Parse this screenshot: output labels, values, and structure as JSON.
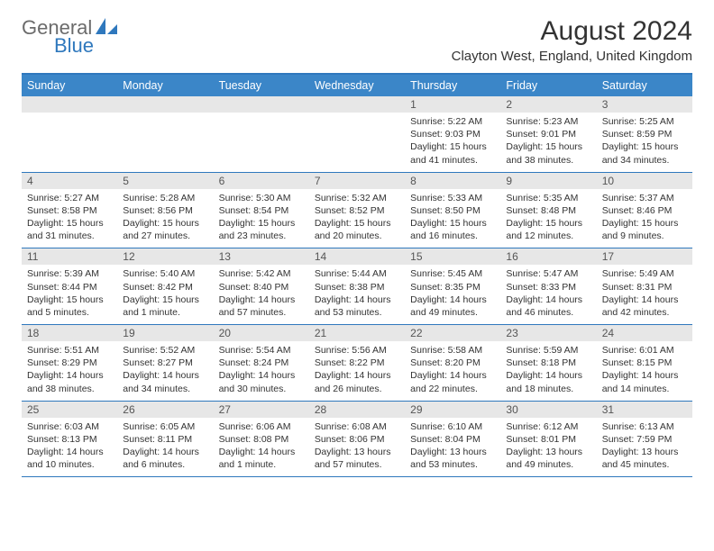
{
  "logo": {
    "text_general": "General",
    "text_blue": "Blue",
    "general_color": "#6b6b6b",
    "blue_color": "#2f78bd"
  },
  "title": {
    "month": "August 2024",
    "location": "Clayton West, England, United Kingdom"
  },
  "colors": {
    "header_bg": "#3b86c8",
    "header_text": "#ffffff",
    "border": "#2f78bd",
    "daynum_bg": "#e7e7e7",
    "body_text": "#333333"
  },
  "day_headers": [
    "Sunday",
    "Monday",
    "Tuesday",
    "Wednesday",
    "Thursday",
    "Friday",
    "Saturday"
  ],
  "weeks": [
    [
      {
        "day": "",
        "sunrise": "",
        "sunset": "",
        "daylight": ""
      },
      {
        "day": "",
        "sunrise": "",
        "sunset": "",
        "daylight": ""
      },
      {
        "day": "",
        "sunrise": "",
        "sunset": "",
        "daylight": ""
      },
      {
        "day": "",
        "sunrise": "",
        "sunset": "",
        "daylight": ""
      },
      {
        "day": "1",
        "sunrise": "Sunrise: 5:22 AM",
        "sunset": "Sunset: 9:03 PM",
        "daylight": "Daylight: 15 hours and 41 minutes."
      },
      {
        "day": "2",
        "sunrise": "Sunrise: 5:23 AM",
        "sunset": "Sunset: 9:01 PM",
        "daylight": "Daylight: 15 hours and 38 minutes."
      },
      {
        "day": "3",
        "sunrise": "Sunrise: 5:25 AM",
        "sunset": "Sunset: 8:59 PM",
        "daylight": "Daylight: 15 hours and 34 minutes."
      }
    ],
    [
      {
        "day": "4",
        "sunrise": "Sunrise: 5:27 AM",
        "sunset": "Sunset: 8:58 PM",
        "daylight": "Daylight: 15 hours and 31 minutes."
      },
      {
        "day": "5",
        "sunrise": "Sunrise: 5:28 AM",
        "sunset": "Sunset: 8:56 PM",
        "daylight": "Daylight: 15 hours and 27 minutes."
      },
      {
        "day": "6",
        "sunrise": "Sunrise: 5:30 AM",
        "sunset": "Sunset: 8:54 PM",
        "daylight": "Daylight: 15 hours and 23 minutes."
      },
      {
        "day": "7",
        "sunrise": "Sunrise: 5:32 AM",
        "sunset": "Sunset: 8:52 PM",
        "daylight": "Daylight: 15 hours and 20 minutes."
      },
      {
        "day": "8",
        "sunrise": "Sunrise: 5:33 AM",
        "sunset": "Sunset: 8:50 PM",
        "daylight": "Daylight: 15 hours and 16 minutes."
      },
      {
        "day": "9",
        "sunrise": "Sunrise: 5:35 AM",
        "sunset": "Sunset: 8:48 PM",
        "daylight": "Daylight: 15 hours and 12 minutes."
      },
      {
        "day": "10",
        "sunrise": "Sunrise: 5:37 AM",
        "sunset": "Sunset: 8:46 PM",
        "daylight": "Daylight: 15 hours and 9 minutes."
      }
    ],
    [
      {
        "day": "11",
        "sunrise": "Sunrise: 5:39 AM",
        "sunset": "Sunset: 8:44 PM",
        "daylight": "Daylight: 15 hours and 5 minutes."
      },
      {
        "day": "12",
        "sunrise": "Sunrise: 5:40 AM",
        "sunset": "Sunset: 8:42 PM",
        "daylight": "Daylight: 15 hours and 1 minute."
      },
      {
        "day": "13",
        "sunrise": "Sunrise: 5:42 AM",
        "sunset": "Sunset: 8:40 PM",
        "daylight": "Daylight: 14 hours and 57 minutes."
      },
      {
        "day": "14",
        "sunrise": "Sunrise: 5:44 AM",
        "sunset": "Sunset: 8:38 PM",
        "daylight": "Daylight: 14 hours and 53 minutes."
      },
      {
        "day": "15",
        "sunrise": "Sunrise: 5:45 AM",
        "sunset": "Sunset: 8:35 PM",
        "daylight": "Daylight: 14 hours and 49 minutes."
      },
      {
        "day": "16",
        "sunrise": "Sunrise: 5:47 AM",
        "sunset": "Sunset: 8:33 PM",
        "daylight": "Daylight: 14 hours and 46 minutes."
      },
      {
        "day": "17",
        "sunrise": "Sunrise: 5:49 AM",
        "sunset": "Sunset: 8:31 PM",
        "daylight": "Daylight: 14 hours and 42 minutes."
      }
    ],
    [
      {
        "day": "18",
        "sunrise": "Sunrise: 5:51 AM",
        "sunset": "Sunset: 8:29 PM",
        "daylight": "Daylight: 14 hours and 38 minutes."
      },
      {
        "day": "19",
        "sunrise": "Sunrise: 5:52 AM",
        "sunset": "Sunset: 8:27 PM",
        "daylight": "Daylight: 14 hours and 34 minutes."
      },
      {
        "day": "20",
        "sunrise": "Sunrise: 5:54 AM",
        "sunset": "Sunset: 8:24 PM",
        "daylight": "Daylight: 14 hours and 30 minutes."
      },
      {
        "day": "21",
        "sunrise": "Sunrise: 5:56 AM",
        "sunset": "Sunset: 8:22 PM",
        "daylight": "Daylight: 14 hours and 26 minutes."
      },
      {
        "day": "22",
        "sunrise": "Sunrise: 5:58 AM",
        "sunset": "Sunset: 8:20 PM",
        "daylight": "Daylight: 14 hours and 22 minutes."
      },
      {
        "day": "23",
        "sunrise": "Sunrise: 5:59 AM",
        "sunset": "Sunset: 8:18 PM",
        "daylight": "Daylight: 14 hours and 18 minutes."
      },
      {
        "day": "24",
        "sunrise": "Sunrise: 6:01 AM",
        "sunset": "Sunset: 8:15 PM",
        "daylight": "Daylight: 14 hours and 14 minutes."
      }
    ],
    [
      {
        "day": "25",
        "sunrise": "Sunrise: 6:03 AM",
        "sunset": "Sunset: 8:13 PM",
        "daylight": "Daylight: 14 hours and 10 minutes."
      },
      {
        "day": "26",
        "sunrise": "Sunrise: 6:05 AM",
        "sunset": "Sunset: 8:11 PM",
        "daylight": "Daylight: 14 hours and 6 minutes."
      },
      {
        "day": "27",
        "sunrise": "Sunrise: 6:06 AM",
        "sunset": "Sunset: 8:08 PM",
        "daylight": "Daylight: 14 hours and 1 minute."
      },
      {
        "day": "28",
        "sunrise": "Sunrise: 6:08 AM",
        "sunset": "Sunset: 8:06 PM",
        "daylight": "Daylight: 13 hours and 57 minutes."
      },
      {
        "day": "29",
        "sunrise": "Sunrise: 6:10 AM",
        "sunset": "Sunset: 8:04 PM",
        "daylight": "Daylight: 13 hours and 53 minutes."
      },
      {
        "day": "30",
        "sunrise": "Sunrise: 6:12 AM",
        "sunset": "Sunset: 8:01 PM",
        "daylight": "Daylight: 13 hours and 49 minutes."
      },
      {
        "day": "31",
        "sunrise": "Sunrise: 6:13 AM",
        "sunset": "Sunset: 7:59 PM",
        "daylight": "Daylight: 13 hours and 45 minutes."
      }
    ]
  ]
}
